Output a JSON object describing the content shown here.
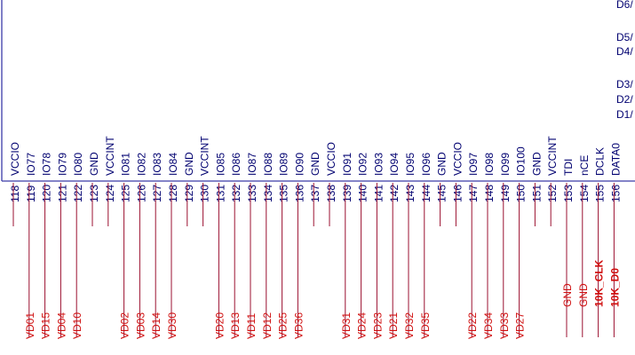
{
  "schematic": {
    "corner_labels": [
      "D6/",
      "D5/",
      "D4/",
      "D3/",
      "D2/",
      "D1/"
    ],
    "pins": [
      {
        "number": "118",
        "name": "VCCIO",
        "net": ""
      },
      {
        "number": "119",
        "name": "IO77",
        "net": "VD01"
      },
      {
        "number": "120",
        "name": "IO78",
        "net": "VD15"
      },
      {
        "number": "121",
        "name": "IO79",
        "net": "VD04"
      },
      {
        "number": "122",
        "name": "IO80",
        "net": "VD10"
      },
      {
        "number": "123",
        "name": "GND",
        "net": ""
      },
      {
        "number": "124",
        "name": "VCCINT",
        "net": ""
      },
      {
        "number": "125",
        "name": "IO81",
        "net": "VD02"
      },
      {
        "number": "126",
        "name": "IO82",
        "net": "VD03"
      },
      {
        "number": "127",
        "name": "IO83",
        "net": "VD14"
      },
      {
        "number": "128",
        "name": "IO84",
        "net": "VD30"
      },
      {
        "number": "129",
        "name": "GND",
        "net": ""
      },
      {
        "number": "130",
        "name": "VCCINT",
        "net": ""
      },
      {
        "number": "131",
        "name": "IO85",
        "net": "VD20"
      },
      {
        "number": "132",
        "name": "IO86",
        "net": "VD13"
      },
      {
        "number": "133",
        "name": "IO87",
        "net": "VD11"
      },
      {
        "number": "134",
        "name": "IO88",
        "net": "VD12"
      },
      {
        "number": "135",
        "name": "IO89",
        "net": "VD25"
      },
      {
        "number": "136",
        "name": "IO90",
        "net": "VD36"
      },
      {
        "number": "137",
        "name": "GND",
        "net": ""
      },
      {
        "number": "138",
        "name": "VCCIO",
        "net": ""
      },
      {
        "number": "139",
        "name": "IO91",
        "net": "VD31"
      },
      {
        "number": "140",
        "name": "IO92",
        "net": "VD24"
      },
      {
        "number": "141",
        "name": "IO93",
        "net": "VD23"
      },
      {
        "number": "142",
        "name": "IO94",
        "net": "VD21"
      },
      {
        "number": "143",
        "name": "IO95",
        "net": "VD32"
      },
      {
        "number": "144",
        "name": "IO96",
        "net": "VD35"
      },
      {
        "number": "145",
        "name": "GND",
        "net": ""
      },
      {
        "number": "146",
        "name": "VCCIO",
        "net": ""
      },
      {
        "number": "147",
        "name": "IO97",
        "net": "VD22"
      },
      {
        "number": "148",
        "name": "IO98",
        "net": "VD34"
      },
      {
        "number": "149",
        "name": "IO99",
        "net": "VD33"
      },
      {
        "number": "150",
        "name": "IO100",
        "net": "VD27"
      },
      {
        "number": "151",
        "name": "GND",
        "net": ""
      },
      {
        "number": "152",
        "name": "VCCINT",
        "net": ""
      },
      {
        "number": "153",
        "name": "TDI",
        "net": "GND"
      },
      {
        "number": "154",
        "name": "nCE",
        "net": "GND"
      },
      {
        "number": "155",
        "name": "DCLK",
        "net": "10K_CLK"
      },
      {
        "number": "156",
        "name": "DATA0",
        "net": "10K_D0"
      }
    ],
    "colors": {
      "body_outline": "#3a3aa8",
      "pin_text": "#000070",
      "pin_line": "#9b1030",
      "net_text": "#d01010"
    }
  }
}
